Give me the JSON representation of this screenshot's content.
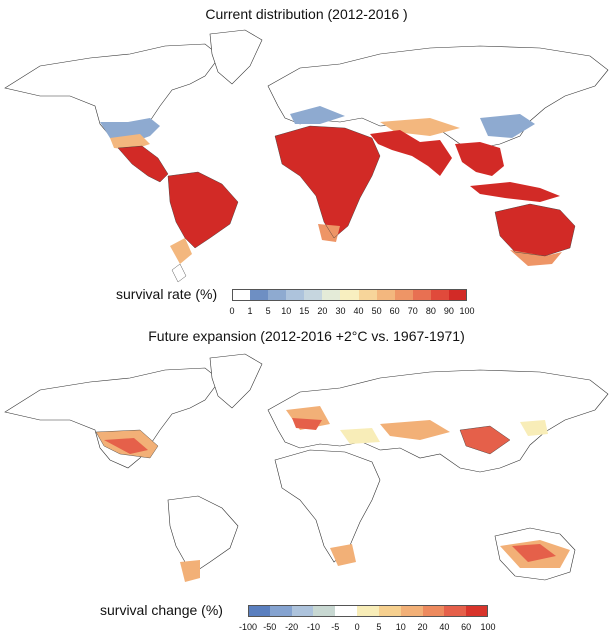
{
  "panels": [
    {
      "title": "Current distribution (2012-2016 )",
      "legend": {
        "label": "survival rate (%)",
        "ticks": [
          "0",
          "1",
          "5",
          "10",
          "15",
          "20",
          "30",
          "40",
          "50",
          "60",
          "70",
          "80",
          "90",
          "100"
        ],
        "colors": [
          "#ffffff",
          "#6e8fc3",
          "#8eaad0",
          "#adc3dc",
          "#c6d6df",
          "#e4ebd8",
          "#f8efc0",
          "#f7d59a",
          "#f3b77e",
          "#ee9566",
          "#e87052",
          "#e04a3b",
          "#d22a26"
        ]
      }
    },
    {
      "title": "Future expansion (2012-2016 +2°C vs. 1967-1971)",
      "legend": {
        "label": "survival change (%)",
        "ticks": [
          "-100",
          "-50",
          "-20",
          "-10",
          "-5",
          "0",
          "5",
          "10",
          "20",
          "40",
          "60",
          "100"
        ],
        "colors": [
          "#5a7fbf",
          "#85a3d0",
          "#adc3dc",
          "#c8d8d2",
          "#ffffff",
          "#f8edb8",
          "#f6d08f",
          "#f2b077",
          "#ed8a5e",
          "#e5604a",
          "#d8342b"
        ]
      }
    }
  ]
}
